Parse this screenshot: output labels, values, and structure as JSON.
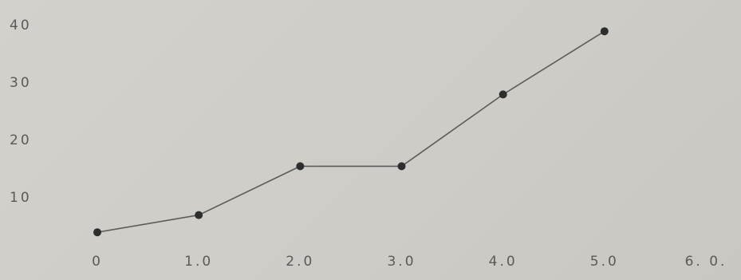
{
  "chart_data": {
    "type": "line",
    "x": [
      0,
      1,
      2,
      3,
      4,
      5
    ],
    "series": [
      {
        "color": "#5c5c5c",
        "values": [
          4,
          7,
          15.5,
          15.5,
          28,
          39
        ]
      }
    ],
    "marker_color": "#2e2e2e",
    "xlim": [
      0,
      6
    ],
    "xticks": [
      0,
      {
        "value": 1,
        "label": "1.0"
      },
      {
        "value": 2,
        "label": "2.0"
      },
      {
        "value": 3,
        "label": "3.0"
      },
      {
        "value": 4,
        "label": "4.0"
      },
      {
        "value": 5,
        "label": "5.0"
      },
      {
        "value": 6,
        "label": "6. 0."
      }
    ],
    "ylim": [
      0,
      40
    ],
    "yticks": [
      10,
      20,
      30,
      40
    ],
    "grid": false
  }
}
